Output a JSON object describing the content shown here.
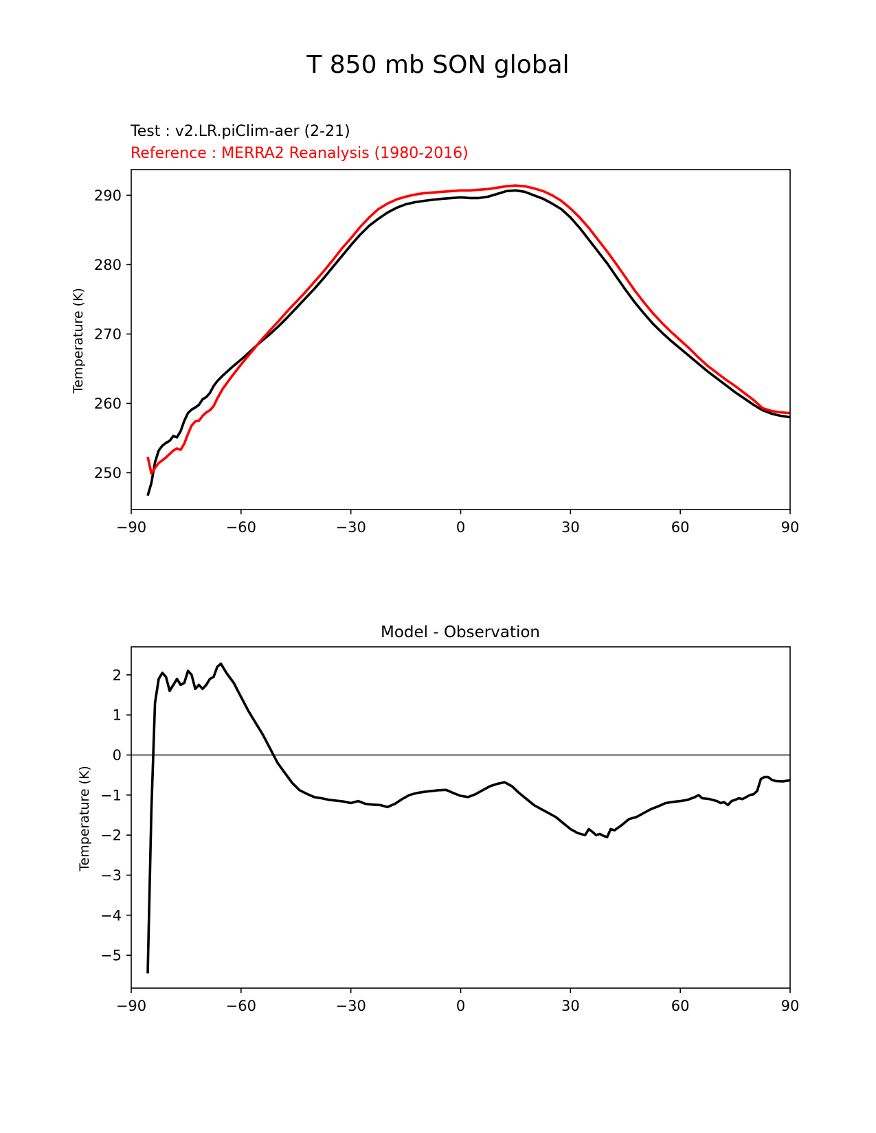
{
  "figure_title": "T 850 mb SON global",
  "chart_data": [
    {
      "type": "line",
      "test_label": "Test : v2.LR.piClim-aer (2-21)",
      "reference_label": "Reference : MERRA2 Reanalysis (1980-2016)",
      "ylabel": "Temperature (K)",
      "xlabel": "",
      "xlim": [
        -90,
        90
      ],
      "ylim": [
        244.7,
        293.7
      ],
      "xticks": [
        -90,
        -60,
        -30,
        0,
        30,
        60,
        90
      ],
      "xtick_labels": [
        "−90",
        "−60",
        "−30",
        "0",
        "30",
        "60",
        "90"
      ],
      "yticks": [
        250,
        260,
        270,
        280,
        290
      ],
      "ytick_labels": [
        "250",
        "260",
        "270",
        "280",
        "290"
      ],
      "grid": false,
      "series": [
        {
          "name": "Test : v2.LR.piClim-aer (2-21)",
          "color": "#000000",
          "x": [
            -85.5,
            -84.5,
            -83.5,
            -82.5,
            -81.5,
            -80.5,
            -79.5,
            -78.5,
            -77.5,
            -76.5,
            -75.5,
            -74.5,
            -73.5,
            -72.5,
            -71.5,
            -70.5,
            -69.5,
            -68.5,
            -67.5,
            -66.5,
            -65,
            -62.5,
            -60,
            -57.5,
            -55,
            -52.5,
            -50,
            -47.5,
            -45,
            -42.5,
            -40,
            -37.5,
            -35,
            -32.5,
            -30,
            -27.5,
            -25,
            -22.5,
            -20,
            -17.5,
            -15,
            -12.5,
            -10,
            -7.5,
            -5,
            -2.5,
            0,
            2.5,
            5,
            7.5,
            10,
            12.5,
            15,
            17.5,
            20,
            22.5,
            25,
            27.5,
            30,
            32.5,
            35,
            37.5,
            40,
            42.5,
            45,
            47.5,
            50,
            52.5,
            55,
            57.5,
            60,
            62.5,
            65,
            67.5,
            70,
            72.5,
            75,
            77.5,
            80,
            82.5,
            85,
            87.5,
            90
          ],
          "y": [
            246.7,
            248.5,
            251.5,
            253.2,
            253.9,
            254.3,
            254.6,
            255.3,
            255.1,
            256.0,
            257.5,
            258.6,
            259.1,
            259.4,
            259.8,
            260.6,
            260.9,
            261.5,
            262.5,
            263.2,
            264.0,
            265.2,
            266.3,
            267.5,
            268.7,
            269.8,
            271.0,
            272.3,
            273.7,
            275.1,
            276.5,
            278.0,
            279.6,
            281.2,
            282.8,
            284.3,
            285.6,
            286.6,
            287.5,
            288.2,
            288.7,
            289.0,
            289.2,
            289.35,
            289.5,
            289.6,
            289.7,
            289.6,
            289.6,
            289.8,
            290.2,
            290.6,
            290.7,
            290.5,
            290.0,
            289.5,
            288.8,
            288.0,
            286.8,
            285.3,
            283.6,
            281.9,
            280.2,
            278.3,
            276.4,
            274.6,
            273.0,
            271.5,
            270.2,
            269.0,
            267.9,
            266.8,
            265.7,
            264.6,
            263.6,
            262.6,
            261.6,
            260.7,
            259.8,
            259.0,
            258.5,
            258.2,
            258.0
          ]
        },
        {
          "name": "Reference : MERRA2 Reanalysis (1980-2016)",
          "color": "#ff0000",
          "x": [
            -85.5,
            -84.5,
            -83.5,
            -82.5,
            -81.5,
            -80.5,
            -79.5,
            -78.5,
            -77.5,
            -76.5,
            -75.5,
            -74.5,
            -73.5,
            -72.5,
            -71.5,
            -70.5,
            -69.5,
            -68.5,
            -67.5,
            -66.5,
            -65,
            -62.5,
            -60,
            -57.5,
            -55,
            -52.5,
            -50,
            -47.5,
            -45,
            -42.5,
            -40,
            -37.5,
            -35,
            -32.5,
            -30,
            -27.5,
            -25,
            -22.5,
            -20,
            -17.5,
            -15,
            -12.5,
            -10,
            -7.5,
            -5,
            -2.5,
            0,
            2.5,
            5,
            7.5,
            10,
            12.5,
            15,
            17.5,
            20,
            22.5,
            25,
            27.5,
            30,
            32.5,
            35,
            37.5,
            40,
            42.5,
            45,
            47.5,
            50,
            52.5,
            55,
            57.5,
            60,
            62.5,
            65,
            67.5,
            70,
            72.5,
            75,
            77.5,
            80,
            82.5,
            85,
            87.5,
            90
          ],
          "y": [
            252.3,
            249.9,
            250.7,
            251.4,
            251.8,
            252.2,
            252.7,
            253.2,
            253.5,
            253.3,
            254.2,
            255.6,
            256.8,
            257.4,
            257.5,
            258.2,
            258.7,
            259.0,
            259.6,
            260.7,
            262.1,
            263.9,
            265.6,
            267.2,
            268.8,
            270.3,
            271.7,
            273.2,
            274.6,
            276.0,
            277.5,
            279.0,
            280.6,
            282.3,
            283.8,
            285.4,
            286.8,
            288.0,
            288.8,
            289.4,
            289.8,
            290.1,
            290.3,
            290.4,
            290.5,
            290.6,
            290.7,
            290.7,
            290.8,
            290.9,
            291.1,
            291.3,
            291.4,
            291.3,
            291.0,
            290.6,
            290.0,
            289.2,
            288.1,
            286.8,
            285.3,
            283.6,
            281.9,
            280.1,
            278.2,
            276.3,
            274.6,
            273.0,
            271.6,
            270.3,
            269.1,
            267.9,
            266.6,
            265.4,
            264.4,
            263.4,
            262.5,
            261.5,
            260.5,
            259.3,
            258.9,
            258.7,
            258.6
          ]
        }
      ]
    },
    {
      "type": "line",
      "title": "Model - Observation",
      "ylabel": "Temperature (K)",
      "xlabel": "",
      "xlim": [
        -90,
        90
      ],
      "ylim": [
        -5.82,
        2.7
      ],
      "xticks": [
        -90,
        -60,
        -30,
        0,
        30,
        60,
        90
      ],
      "xtick_labels": [
        "−90",
        "−60",
        "−30",
        "0",
        "30",
        "60",
        "90"
      ],
      "yticks": [
        -5,
        -4,
        -3,
        -2,
        -1,
        0,
        1,
        2
      ],
      "ytick_labels": [
        "−5",
        "−4",
        "−3",
        "−2",
        "−1",
        "0",
        "1",
        "2"
      ],
      "grid": false,
      "zero_line_color": "#808080",
      "series": [
        {
          "name": "Model - Observation",
          "color": "#000000",
          "x": [
            -85.5,
            -84.5,
            -83.5,
            -82.5,
            -81.5,
            -80.5,
            -79.5,
            -78.5,
            -77.5,
            -76.5,
            -75.5,
            -74.5,
            -73.5,
            -72.5,
            -71.5,
            -70.5,
            -69.5,
            -68.5,
            -67.5,
            -66.5,
            -65.5,
            -64,
            -62,
            -60,
            -58,
            -56,
            -54,
            -52,
            -50,
            -48,
            -46,
            -44,
            -42,
            -40,
            -38,
            -36,
            -34,
            -32,
            -30,
            -28,
            -26,
            -24,
            -22,
            -20,
            -18,
            -16,
            -14,
            -12,
            -10,
            -8,
            -6,
            -4,
            -2,
            0,
            2,
            4,
            6,
            8,
            10,
            12,
            14,
            16,
            18,
            20,
            22,
            24,
            26,
            28,
            30,
            32,
            34,
            35,
            36,
            37,
            38,
            39,
            40,
            41,
            42,
            44,
            46,
            48,
            50,
            52,
            54,
            56,
            58,
            60,
            62,
            64,
            65,
            66,
            68,
            70,
            71,
            72,
            73,
            74,
            75,
            76,
            77,
            78,
            79,
            80,
            81,
            82,
            83,
            84,
            85,
            86,
            88,
            90
          ],
          "y": [
            -5.45,
            -1.4,
            1.3,
            1.9,
            2.05,
            1.95,
            1.6,
            1.75,
            1.9,
            1.75,
            1.8,
            2.1,
            2.0,
            1.65,
            1.75,
            1.65,
            1.75,
            1.9,
            1.95,
            2.2,
            2.28,
            2.05,
            1.8,
            1.45,
            1.1,
            0.8,
            0.5,
            0.15,
            -0.2,
            -0.45,
            -0.7,
            -0.88,
            -0.97,
            -1.05,
            -1.08,
            -1.12,
            -1.14,
            -1.16,
            -1.2,
            -1.15,
            -1.22,
            -1.24,
            -1.25,
            -1.3,
            -1.22,
            -1.1,
            -1.0,
            -0.95,
            -0.92,
            -0.9,
            -0.88,
            -0.87,
            -0.95,
            -1.02,
            -1.05,
            -0.98,
            -0.88,
            -0.78,
            -0.72,
            -0.68,
            -0.78,
            -0.95,
            -1.1,
            -1.25,
            -1.35,
            -1.45,
            -1.55,
            -1.7,
            -1.85,
            -1.95,
            -2.0,
            -1.85,
            -1.92,
            -2.0,
            -1.97,
            -2.02,
            -2.05,
            -1.85,
            -1.88,
            -1.75,
            -1.6,
            -1.55,
            -1.45,
            -1.35,
            -1.28,
            -1.2,
            -1.17,
            -1.15,
            -1.12,
            -1.05,
            -1.0,
            -1.08,
            -1.1,
            -1.15,
            -1.2,
            -1.18,
            -1.25,
            -1.15,
            -1.12,
            -1.08,
            -1.1,
            -1.05,
            -1.0,
            -0.98,
            -0.9,
            -0.6,
            -0.55,
            -0.55,
            -0.62,
            -0.65,
            -0.66,
            -0.63
          ]
        }
      ]
    }
  ]
}
